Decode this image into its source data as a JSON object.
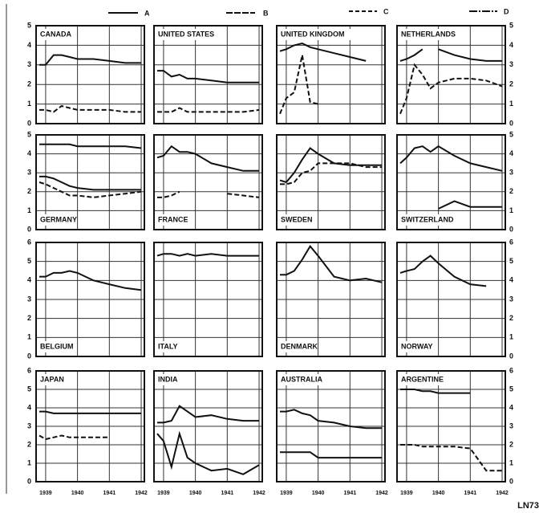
{
  "column_labels": [
    "A",
    "B",
    "C",
    "D"
  ],
  "code": "LN73",
  "chart_data": [
    {
      "type": "line",
      "title": "CANADA",
      "x": [
        1938.8,
        1939,
        1939.25,
        1939.5,
        1939.75,
        1940,
        1940.5,
        1941,
        1941.5,
        1942
      ],
      "xlim": [
        1938.7,
        1942.1
      ],
      "xticks": [
        1939,
        1940,
        1941,
        1942
      ],
      "ylim": [
        0,
        5
      ],
      "yticks": [
        0,
        1,
        2,
        3,
        4,
        5
      ],
      "grid": true,
      "series": [
        {
          "color": "#111",
          "values": [
            3.0,
            3.0,
            3.5,
            3.5,
            3.4,
            3.3,
            3.3,
            3.2,
            3.1,
            3.1
          ]
        },
        {
          "color": "#111",
          "dash": true,
          "values": [
            0.7,
            0.7,
            0.6,
            0.9,
            0.8,
            0.7,
            0.7,
            0.7,
            0.6,
            0.6
          ]
        }
      ]
    },
    {
      "type": "line",
      "title": "UNITED STATES",
      "x": [
        1938.8,
        1939,
        1939.25,
        1939.5,
        1939.75,
        1940,
        1940.5,
        1941,
        1941.5,
        1942
      ],
      "xlim": [
        1938.7,
        1942.1
      ],
      "xticks": [
        1939,
        1940,
        1941,
        1942
      ],
      "ylim": [
        0,
        5
      ],
      "yticks": [
        0,
        1,
        2,
        3,
        4,
        5
      ],
      "grid": true,
      "series": [
        {
          "color": "#111",
          "values": [
            2.7,
            2.7,
            2.4,
            2.5,
            2.3,
            2.3,
            2.2,
            2.1,
            2.1,
            2.1
          ]
        },
        {
          "color": "#111",
          "dash": true,
          "values": [
            0.6,
            0.6,
            0.6,
            0.8,
            0.6,
            0.6,
            0.6,
            0.6,
            0.6,
            0.7
          ]
        }
      ]
    },
    {
      "type": "line",
      "title": "UNITED KINGDOM",
      "x": [
        1938.8,
        1939,
        1939.25,
        1939.5,
        1939.75,
        1940,
        1940.5,
        1941,
        1941.5,
        1942
      ],
      "xlim": [
        1938.7,
        1942.1
      ],
      "xticks": [
        1939,
        1940,
        1941,
        1942
      ],
      "ylim": [
        0,
        5
      ],
      "yticks": [
        0,
        1,
        2,
        3,
        4,
        5
      ],
      "grid": true,
      "series": [
        {
          "color": "#111",
          "values": [
            3.7,
            3.8,
            4.0,
            4.1,
            3.9,
            3.8,
            3.6,
            3.4,
            3.2,
            null
          ]
        },
        {
          "color": "#111",
          "dash": true,
          "values": [
            0.5,
            1.3,
            1.6,
            3.5,
            1.1,
            1.0,
            null,
            null,
            null,
            null
          ]
        }
      ]
    },
    {
      "type": "line",
      "title": "NETHERLANDS",
      "x": [
        1938.8,
        1939,
        1939.25,
        1939.5,
        1939.75,
        1940,
        1940.5,
        1941,
        1941.5,
        1942
      ],
      "xlim": [
        1938.7,
        1942.1
      ],
      "xticks": [
        1939,
        1940,
        1941,
        1942
      ],
      "ylim": [
        0,
        5
      ],
      "yticks": [
        0,
        1,
        2,
        3,
        4,
        5
      ],
      "grid": true,
      "series": [
        {
          "color": "#111",
          "values": [
            3.2,
            3.3,
            3.5,
            3.8,
            null,
            3.8,
            3.5,
            3.3,
            3.2,
            3.2
          ]
        },
        {
          "color": "#111",
          "dash": true,
          "values": [
            0.5,
            1.3,
            3.0,
            2.5,
            1.8,
            2.1,
            2.3,
            2.3,
            2.2,
            1.9
          ]
        }
      ]
    },
    {
      "type": "line",
      "title": "GERMANY",
      "x": [
        1938.8,
        1939,
        1939.25,
        1939.5,
        1939.75,
        1940,
        1940.5,
        1941,
        1941.5,
        1942
      ],
      "xlim": [
        1938.7,
        1942.1
      ],
      "xticks": [
        1939,
        1940,
        1941,
        1942
      ],
      "ylim": [
        0,
        5
      ],
      "yticks": [
        0,
        1,
        2,
        3,
        4,
        5
      ],
      "grid": true,
      "series": [
        {
          "color": "#111",
          "values": [
            4.5,
            4.5,
            4.5,
            4.5,
            4.5,
            4.4,
            4.4,
            4.4,
            4.4,
            4.3
          ]
        },
        {
          "color": "#111",
          "values": [
            2.8,
            2.8,
            2.7,
            2.5,
            2.3,
            2.2,
            2.1,
            2.1,
            2.1,
            2.1
          ]
        },
        {
          "color": "#111",
          "dash": true,
          "values": [
            2.5,
            2.4,
            2.2,
            2.0,
            1.8,
            1.8,
            1.7,
            1.8,
            1.9,
            2.0
          ]
        }
      ]
    },
    {
      "type": "line",
      "title": "FRANCE",
      "x": [
        1938.8,
        1939,
        1939.25,
        1939.5,
        1939.75,
        1940,
        1940.5,
        1941,
        1941.5,
        1942
      ],
      "xlim": [
        1938.7,
        1942.1
      ],
      "xticks": [
        1939,
        1940,
        1941,
        1942
      ],
      "ylim": [
        0,
        5
      ],
      "yticks": [
        0,
        1,
        2,
        3,
        4,
        5
      ],
      "grid": true,
      "series": [
        {
          "color": "#111",
          "values": [
            3.8,
            3.9,
            4.4,
            4.1,
            4.1,
            4.0,
            3.5,
            3.3,
            3.1,
            3.1
          ]
        },
        {
          "color": "#111",
          "dash": true,
          "values": [
            1.7,
            1.7,
            1.8,
            2.0,
            null,
            null,
            null,
            1.9,
            1.8,
            1.7
          ]
        }
      ]
    },
    {
      "type": "line",
      "title": "SWEDEN",
      "x": [
        1938.8,
        1939,
        1939.25,
        1939.5,
        1939.75,
        1940,
        1940.5,
        1941,
        1941.5,
        1942
      ],
      "xlim": [
        1938.7,
        1942.1
      ],
      "xticks": [
        1939,
        1940,
        1941,
        1942
      ],
      "ylim": [
        0,
        5
      ],
      "yticks": [
        0,
        1,
        2,
        3,
        4,
        5
      ],
      "grid": true,
      "series": [
        {
          "color": "#111",
          "values": [
            2.6,
            2.5,
            3.0,
            3.7,
            4.3,
            4.0,
            3.5,
            3.4,
            3.4,
            3.4
          ]
        },
        {
          "color": "#111",
          "dash": true,
          "values": [
            2.4,
            2.4,
            2.5,
            3.0,
            3.1,
            3.5,
            3.5,
            3.5,
            3.3,
            3.3
          ]
        }
      ]
    },
    {
      "type": "line",
      "title": "SWITZERLAND",
      "x": [
        1938.8,
        1939,
        1939.25,
        1939.5,
        1939.75,
        1940,
        1940.5,
        1941,
        1941.5,
        1942
      ],
      "xlim": [
        1938.7,
        1942.1
      ],
      "xticks": [
        1939,
        1940,
        1941,
        1942
      ],
      "ylim": [
        0,
        5
      ],
      "yticks": [
        0,
        1,
        2,
        3,
        4,
        5
      ],
      "grid": true,
      "series": [
        {
          "color": "#111",
          "values": [
            3.5,
            3.8,
            4.3,
            4.4,
            4.1,
            4.4,
            3.9,
            3.5,
            3.3,
            3.1
          ]
        },
        {
          "color": "#111",
          "values": [
            null,
            null,
            null,
            null,
            null,
            1.1,
            1.5,
            1.2,
            1.2,
            1.2
          ]
        }
      ]
    },
    {
      "type": "line",
      "title": "BELGIUM",
      "x": [
        1938.8,
        1939,
        1939.25,
        1939.5,
        1939.75,
        1940,
        1940.5,
        1941,
        1941.5,
        1942
      ],
      "xlim": [
        1938.7,
        1942.1
      ],
      "xticks": [
        1939,
        1940,
        1941,
        1942
      ],
      "ylim": [
        0,
        6
      ],
      "yticks": [
        0,
        1,
        2,
        3,
        4,
        5,
        6
      ],
      "grid": true,
      "series": [
        {
          "color": "#111",
          "values": [
            4.2,
            4.2,
            4.4,
            4.4,
            4.5,
            4.4,
            4.0,
            3.8,
            3.6,
            3.5
          ]
        }
      ]
    },
    {
      "type": "line",
      "title": "ITALY",
      "x": [
        1938.8,
        1939,
        1939.25,
        1939.5,
        1939.75,
        1940,
        1940.5,
        1941,
        1941.5,
        1942
      ],
      "xlim": [
        1938.7,
        1942.1
      ],
      "xticks": [
        1939,
        1940,
        1941,
        1942
      ],
      "ylim": [
        0,
        6
      ],
      "yticks": [
        0,
        1,
        2,
        3,
        4,
        5,
        6
      ],
      "grid": true,
      "series": [
        {
          "color": "#111",
          "values": [
            5.3,
            5.4,
            5.4,
            5.3,
            5.4,
            5.3,
            5.4,
            5.3,
            5.3,
            5.3
          ]
        }
      ]
    },
    {
      "type": "line",
      "title": "DENMARK",
      "x": [
        1938.8,
        1939,
        1939.25,
        1939.5,
        1939.75,
        1940,
        1940.5,
        1941,
        1941.5,
        1942
      ],
      "xlim": [
        1938.7,
        1942.1
      ],
      "xticks": [
        1939,
        1940,
        1941,
        1942
      ],
      "ylim": [
        0,
        6
      ],
      "yticks": [
        0,
        1,
        2,
        3,
        4,
        5,
        6
      ],
      "grid": true,
      "series": [
        {
          "color": "#111",
          "values": [
            4.3,
            4.3,
            4.5,
            5.1,
            5.8,
            5.3,
            4.2,
            4.0,
            4.1,
            3.9
          ]
        }
      ]
    },
    {
      "type": "line",
      "title": "NORWAY",
      "x": [
        1938.8,
        1939,
        1939.25,
        1939.5,
        1939.75,
        1940,
        1940.5,
        1941,
        1941.5,
        1942
      ],
      "xlim": [
        1938.7,
        1942.1
      ],
      "xticks": [
        1939,
        1940,
        1941,
        1942
      ],
      "ylim": [
        0,
        6
      ],
      "yticks": [
        0,
        1,
        2,
        3,
        4,
        5,
        6
      ],
      "grid": true,
      "series": [
        {
          "color": "#111",
          "values": [
            4.4,
            4.5,
            4.6,
            5.0,
            5.3,
            4.9,
            4.2,
            3.8,
            3.7,
            null
          ]
        }
      ]
    },
    {
      "type": "line",
      "title": "JAPAN",
      "x": [
        1938.8,
        1939,
        1939.25,
        1939.5,
        1939.75,
        1940,
        1940.5,
        1941,
        1941.5,
        1942
      ],
      "xlim": [
        1938.7,
        1942.1
      ],
      "xticks": [
        1939,
        1940,
        1941,
        1942
      ],
      "ylim": [
        0,
        6
      ],
      "yticks": [
        0,
        1,
        2,
        3,
        4,
        5,
        6
      ],
      "grid": true,
      "series": [
        {
          "color": "#111",
          "values": [
            3.8,
            3.8,
            3.7,
            3.7,
            3.7,
            3.7,
            3.7,
            3.7,
            3.7,
            3.7
          ]
        },
        {
          "color": "#111",
          "dash": true,
          "values": [
            2.5,
            2.3,
            2.4,
            2.5,
            2.4,
            2.4,
            2.4,
            2.4,
            null,
            null
          ]
        }
      ]
    },
    {
      "type": "line",
      "title": "INDIA",
      "x": [
        1938.8,
        1939,
        1939.25,
        1939.5,
        1939.75,
        1940,
        1940.5,
        1941,
        1941.5,
        1942
      ],
      "xlim": [
        1938.7,
        1942.1
      ],
      "xticks": [
        1939,
        1940,
        1941,
        1942
      ],
      "ylim": [
        0,
        6
      ],
      "yticks": [
        0,
        1,
        2,
        3,
        4,
        5,
        6
      ],
      "grid": true,
      "series": [
        {
          "color": "#111",
          "values": [
            3.2,
            3.2,
            3.3,
            4.1,
            3.8,
            3.5,
            3.6,
            3.4,
            3.3,
            3.3
          ]
        },
        {
          "color": "#111",
          "values": [
            2.6,
            2.2,
            0.8,
            2.6,
            1.3,
            1.0,
            0.6,
            0.7,
            0.4,
            0.9
          ]
        }
      ]
    },
    {
      "type": "line",
      "title": "AUSTRALIA",
      "x": [
        1938.8,
        1939,
        1939.25,
        1939.5,
        1939.75,
        1940,
        1940.5,
        1941,
        1941.5,
        1942
      ],
      "xlim": [
        1938.7,
        1942.1
      ],
      "xticks": [
        1939,
        1940,
        1941,
        1942
      ],
      "ylim": [
        0,
        6
      ],
      "yticks": [
        0,
        1,
        2,
        3,
        4,
        5,
        6
      ],
      "grid": true,
      "series": [
        {
          "color": "#111",
          "values": [
            3.8,
            3.8,
            3.9,
            3.7,
            3.6,
            3.3,
            3.2,
            3.0,
            2.9,
            2.9
          ]
        },
        {
          "color": "#111",
          "values": [
            1.6,
            1.6,
            1.6,
            1.6,
            1.6,
            1.3,
            1.3,
            1.3,
            1.3,
            1.3
          ]
        }
      ]
    },
    {
      "type": "line",
      "title": "ARGENTINE",
      "x": [
        1938.8,
        1939,
        1939.25,
        1939.5,
        1939.75,
        1940,
        1940.5,
        1941,
        1941.5,
        1942
      ],
      "xlim": [
        1938.7,
        1942.1
      ],
      "xticks": [
        1939,
        1940,
        1941,
        1942
      ],
      "ylim": [
        0,
        6
      ],
      "yticks": [
        0,
        1,
        2,
        3,
        4,
        5,
        6
      ],
      "grid": true,
      "series": [
        {
          "color": "#111",
          "values": [
            5.0,
            5.0,
            5.0,
            4.9,
            4.9,
            4.8,
            4.8,
            4.8,
            null,
            null
          ]
        },
        {
          "color": "#111",
          "dash": true,
          "values": [
            2.0,
            2.0,
            2.0,
            1.9,
            1.9,
            1.9,
            1.9,
            1.8,
            0.6,
            0.6
          ]
        }
      ]
    }
  ]
}
